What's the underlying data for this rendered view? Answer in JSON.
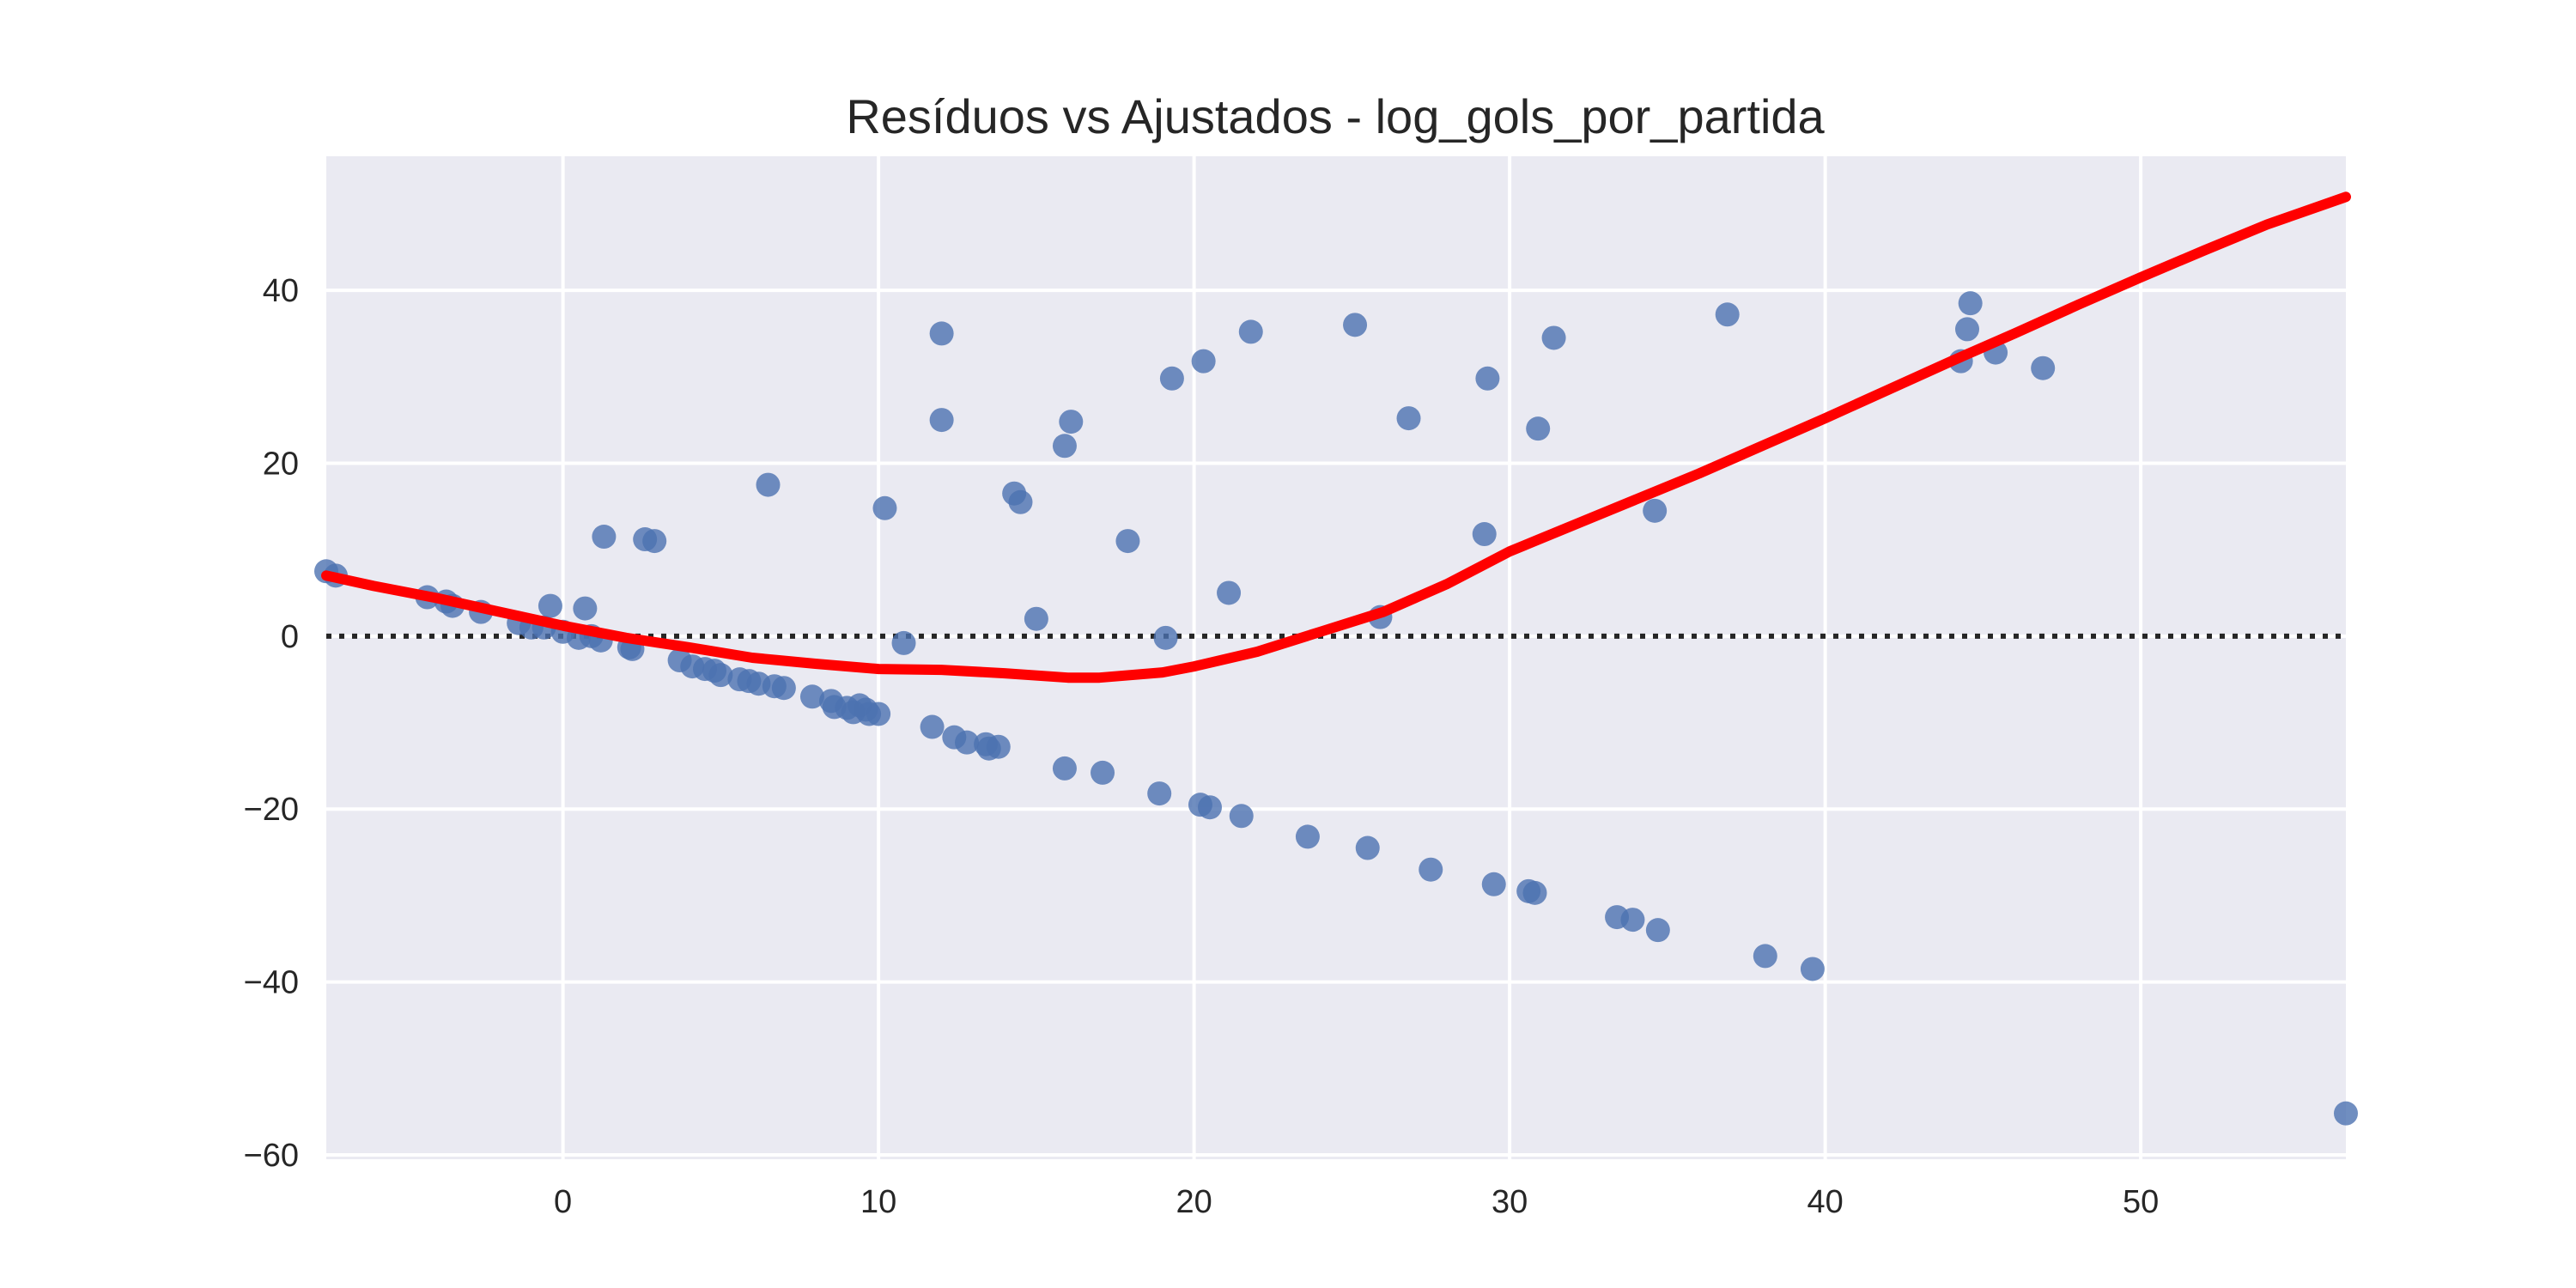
{
  "chart_data": {
    "type": "scatter",
    "title": "Resíduos vs Ajustados - log_gols_por_partida",
    "xlabel": "",
    "ylabel": "",
    "xlim": [
      -7.5,
      56.5
    ],
    "ylim": [
      -60.5,
      55.5
    ],
    "x_ticks": [
      0,
      10,
      20,
      30,
      40,
      50
    ],
    "x_tick_labels": [
      "0",
      "10",
      "20",
      "30",
      "40",
      "50"
    ],
    "y_ticks": [
      -60,
      -40,
      -20,
      0,
      20,
      40
    ],
    "y_tick_labels": [
      "−60",
      "−40",
      "−20",
      "0",
      "20",
      "40"
    ],
    "grid": true,
    "colors": {
      "background": "#eaeaf2",
      "grid": "#ffffff",
      "points": "#4c72b0",
      "lowess": "#ff0000",
      "zero_line": "#262626"
    },
    "reference_line": {
      "y": 0,
      "style": "dotted"
    },
    "series": [
      {
        "name": "residuals",
        "points": [
          [
            -7.5,
            7.5
          ],
          [
            -7.2,
            7.0
          ],
          [
            -4.3,
            4.5
          ],
          [
            -3.7,
            4.0
          ],
          [
            -3.5,
            3.5
          ],
          [
            -2.6,
            2.8
          ],
          [
            -1.4,
            1.5
          ],
          [
            -1.0,
            1.0
          ],
          [
            -0.6,
            1.0
          ],
          [
            -0.4,
            3.5
          ],
          [
            0.0,
            0.5
          ],
          [
            0.5,
            -0.2
          ],
          [
            0.7,
            3.2
          ],
          [
            0.9,
            0.0
          ],
          [
            1.2,
            -0.5
          ],
          [
            1.3,
            11.5
          ],
          [
            2.1,
            -1.3
          ],
          [
            2.2,
            -1.5
          ],
          [
            2.6,
            11.2
          ],
          [
            2.9,
            11.0
          ],
          [
            3.7,
            -2.8
          ],
          [
            4.1,
            -3.5
          ],
          [
            4.5,
            -3.8
          ],
          [
            4.8,
            -4.0
          ],
          [
            5.0,
            -4.5
          ],
          [
            5.6,
            -5.0
          ],
          [
            5.9,
            -5.2
          ],
          [
            6.2,
            -5.5
          ],
          [
            6.5,
            17.5
          ],
          [
            6.7,
            -5.8
          ],
          [
            7.0,
            -6.0
          ],
          [
            7.9,
            -7.0
          ],
          [
            8.5,
            -7.5
          ],
          [
            8.6,
            -8.2
          ],
          [
            9.0,
            -8.3
          ],
          [
            9.2,
            -8.8
          ],
          [
            9.4,
            -8.0
          ],
          [
            9.6,
            -8.5
          ],
          [
            9.7,
            -9.0
          ],
          [
            10.0,
            -9.0
          ],
          [
            10.2,
            14.8
          ],
          [
            10.8,
            -0.8
          ],
          [
            11.7,
            -10.5
          ],
          [
            12.0,
            35.0
          ],
          [
            12.0,
            25.0
          ],
          [
            12.4,
            -11.7
          ],
          [
            12.8,
            -12.3
          ],
          [
            13.4,
            -12.5
          ],
          [
            13.5,
            -13.0
          ],
          [
            13.8,
            -12.8
          ],
          [
            14.3,
            16.5
          ],
          [
            14.5,
            15.5
          ],
          [
            15.0,
            2.0
          ],
          [
            15.9,
            -15.3
          ],
          [
            15.9,
            22.0
          ],
          [
            16.1,
            24.8
          ],
          [
            17.1,
            -15.8
          ],
          [
            17.9,
            11.0
          ],
          [
            18.9,
            -18.2
          ],
          [
            19.1,
            -0.2
          ],
          [
            19.3,
            29.8
          ],
          [
            20.2,
            -19.5
          ],
          [
            20.3,
            31.8
          ],
          [
            20.5,
            -19.8
          ],
          [
            21.1,
            5.0
          ],
          [
            21.5,
            -20.8
          ],
          [
            21.8,
            35.2
          ],
          [
            23.6,
            -23.2
          ],
          [
            25.1,
            36.0
          ],
          [
            25.5,
            -24.5
          ],
          [
            25.9,
            2.2
          ],
          [
            26.8,
            25.2
          ],
          [
            27.5,
            -27.0
          ],
          [
            29.2,
            11.8
          ],
          [
            29.3,
            29.8
          ],
          [
            29.5,
            -28.7
          ],
          [
            30.6,
            -29.5
          ],
          [
            30.8,
            -29.7
          ],
          [
            30.9,
            24.0
          ],
          [
            31.4,
            34.5
          ],
          [
            33.4,
            -32.5
          ],
          [
            33.9,
            -32.8
          ],
          [
            34.6,
            14.5
          ],
          [
            34.7,
            -34.0
          ],
          [
            36.9,
            37.2
          ],
          [
            38.1,
            -37.0
          ],
          [
            39.6,
            -38.5
          ],
          [
            44.3,
            31.8
          ],
          [
            44.5,
            35.5
          ],
          [
            44.6,
            38.5
          ],
          [
            45.4,
            32.8
          ],
          [
            46.9,
            31.0
          ],
          [
            56.5,
            -55.2
          ]
        ]
      },
      {
        "name": "lowess",
        "points": [
          [
            -7.5,
            7.0
          ],
          [
            -6.0,
            5.8
          ],
          [
            -4.0,
            4.4
          ],
          [
            -2.0,
            2.8
          ],
          [
            0.0,
            1.2
          ],
          [
            2.0,
            -0.2
          ],
          [
            4.0,
            -1.3
          ],
          [
            6.0,
            -2.5
          ],
          [
            8.0,
            -3.2
          ],
          [
            10.0,
            -3.8
          ],
          [
            12.0,
            -3.9
          ],
          [
            14.0,
            -4.3
          ],
          [
            16.0,
            -4.8
          ],
          [
            17.0,
            -4.8
          ],
          [
            19.0,
            -4.2
          ],
          [
            20.0,
            -3.5
          ],
          [
            22.0,
            -1.8
          ],
          [
            24.0,
            0.5
          ],
          [
            26.0,
            2.8
          ],
          [
            28.0,
            6.0
          ],
          [
            30.0,
            9.8
          ],
          [
            32.0,
            12.8
          ],
          [
            34.0,
            15.8
          ],
          [
            36.0,
            18.8
          ],
          [
            38.0,
            22.0
          ],
          [
            40.0,
            25.2
          ],
          [
            42.0,
            28.5
          ],
          [
            44.0,
            31.8
          ],
          [
            46.0,
            35.0
          ],
          [
            48.0,
            38.3
          ],
          [
            50.0,
            41.5
          ],
          [
            52.0,
            44.6
          ],
          [
            54.0,
            47.6
          ],
          [
            56.5,
            50.8
          ]
        ]
      }
    ]
  }
}
